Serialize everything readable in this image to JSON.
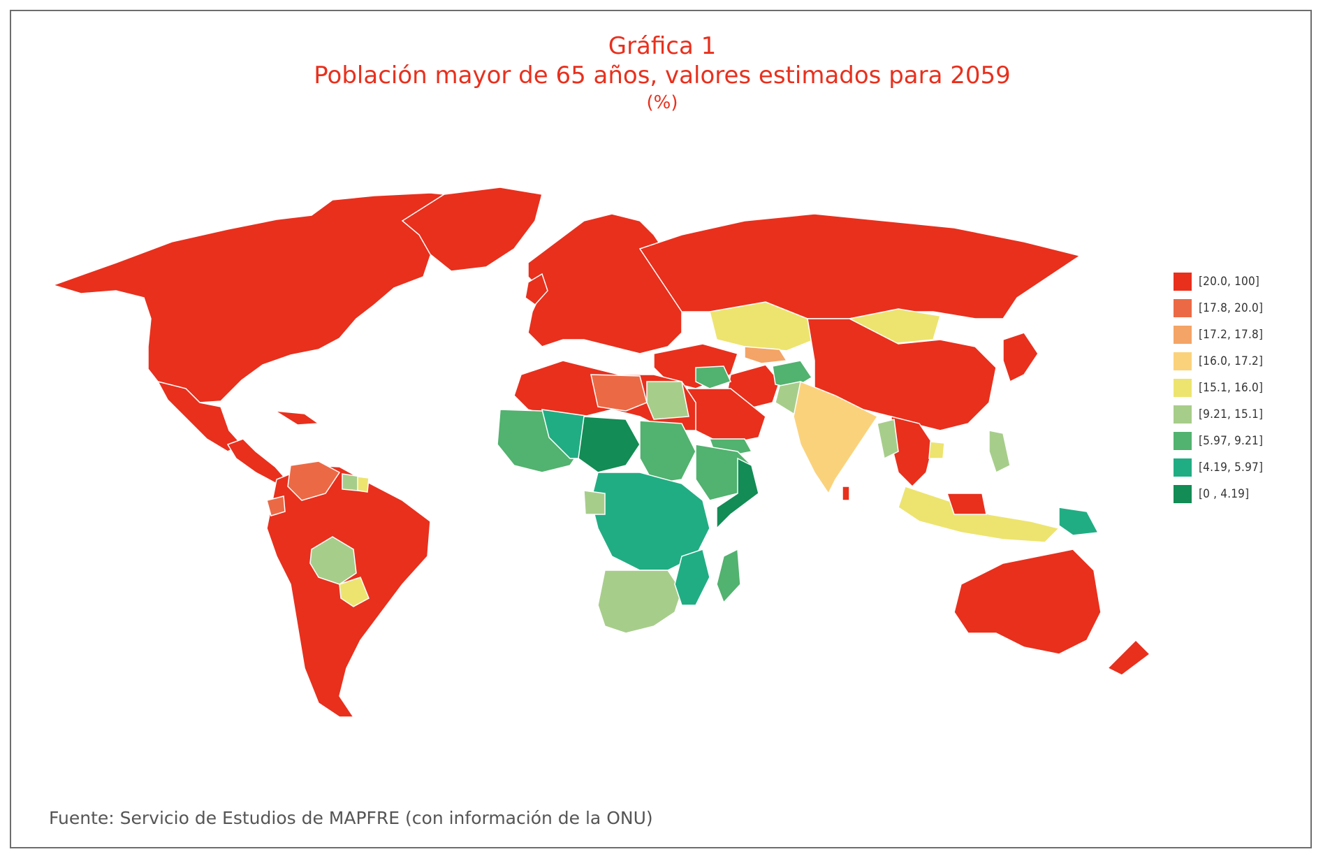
{
  "title": {
    "line1": "Gráfica 1",
    "line2": "Población mayor de 65 años, valores estimados para 2059",
    "line3": "(%)"
  },
  "legend": [
    {
      "label": "[20.0, 100]",
      "color": "#e8301d"
    },
    {
      "label": "[17.8, 20.0]",
      "color": "#eb6a45"
    },
    {
      "label": "[17.2, 17.8]",
      "color": "#f4a466"
    },
    {
      "label": "[16.0, 17.2]",
      "color": "#fbd27c"
    },
    {
      "label": "[15.1, 16.0]",
      "color": "#ede46f"
    },
    {
      "label": "[9.21, 15.1]",
      "color": "#a7cd8b"
    },
    {
      "label": "[5.97, 9.21]",
      "color": "#52b26f"
    },
    {
      "label": "[4.19, 5.97]",
      "color": "#21ad83"
    },
    {
      "label": "[0 , 4.19]",
      "color": "#138c55"
    }
  ],
  "source": "Fuente: Servicio de Estudios de MAPFRE (con información de la ONU)",
  "colors": {
    "title": "#e8301d",
    "frame": "#6d6d6d"
  }
}
